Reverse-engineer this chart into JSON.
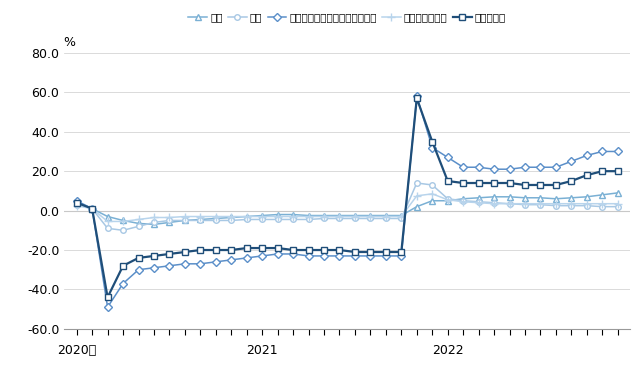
{
  "ylabel": "%",
  "ylim": [
    -60.0,
    80.0
  ],
  "yticks": [
    -60.0,
    -40.0,
    -20.0,
    0.0,
    20.0,
    40.0,
    60.0,
    80.0
  ],
  "n_months": 36,
  "series": {
    "製造": {
      "color": "#7ab0d4",
      "marker": "^",
      "markersize": 4,
      "linewidth": 1.1,
      "markerfacecolor": "white",
      "values": [
        4.0,
        1.0,
        -3.0,
        -5.0,
        -6.5,
        -7.0,
        -6.0,
        -5.0,
        -4.5,
        -4.0,
        -3.5,
        -3.0,
        -2.5,
        -2.0,
        -2.0,
        -2.5,
        -2.5,
        -2.5,
        -2.5,
        -2.5,
        -2.5,
        -2.5,
        2.0,
        5.0,
        5.0,
        6.0,
        6.5,
        7.0,
        7.0,
        6.5,
        6.5,
        6.0,
        6.5,
        7.0,
        8.0,
        9.0
      ]
    },
    "小売": {
      "color": "#a8c8e4",
      "marker": "o",
      "markersize": 4,
      "linewidth": 1.1,
      "markerfacecolor": "white",
      "values": [
        3.0,
        1.0,
        -9.0,
        -10.0,
        -8.0,
        -6.0,
        -5.0,
        -5.0,
        -5.0,
        -5.0,
        -5.0,
        -4.5,
        -4.5,
        -4.5,
        -4.5,
        -4.5,
        -4.0,
        -4.0,
        -4.0,
        -4.0,
        -4.0,
        -4.0,
        14.0,
        13.0,
        6.0,
        5.0,
        4.5,
        4.0,
        3.5,
        3.0,
        3.0,
        2.5,
        2.5,
        2.5,
        2.0,
        2.0
      ]
    },
    "芸術、娱楽、レクリエーション": {
      "color": "#5b8fc9",
      "marker": "D",
      "markersize": 4,
      "linewidth": 1.1,
      "markerfacecolor": "white",
      "values": [
        5.0,
        1.0,
        -49.0,
        -37.0,
        -30.0,
        -29.0,
        -28.0,
        -27.0,
        -27.0,
        -26.0,
        -25.0,
        -24.0,
        -23.0,
        -22.0,
        -22.0,
        -23.0,
        -23.0,
        -23.0,
        -23.0,
        -23.0,
        -23.0,
        -23.0,
        58.0,
        32.0,
        27.0,
        22.0,
        22.0,
        21.0,
        21.0,
        22.0,
        22.0,
        22.0,
        25.0,
        28.0,
        30.0,
        30.0
      ]
    },
    "保健衛生、福祉": {
      "color": "#b8d4ec",
      "marker": "+",
      "markersize": 6,
      "linewidth": 1.1,
      "markerfacecolor": "#b8d4ec",
      "values": [
        2.5,
        1.0,
        -5.5,
        -5.5,
        -4.5,
        -3.5,
        -3.5,
        -3.0,
        -3.0,
        -3.0,
        -3.0,
        -3.0,
        -3.0,
        -3.0,
        -3.0,
        -3.0,
        -3.0,
        -3.0,
        -3.0,
        -3.0,
        -3.0,
        -3.0,
        7.5,
        8.5,
        5.5,
        4.5,
        4.0,
        3.5,
        3.5,
        3.5,
        3.5,
        3.5,
        3.5,
        3.5,
        3.5,
        3.5
      ]
    },
    "宿泊、飲食": {
      "color": "#1f4e79",
      "marker": "s",
      "markersize": 4,
      "linewidth": 1.6,
      "markerfacecolor": "white",
      "values": [
        4.0,
        1.0,
        -44.0,
        -28.0,
        -24.0,
        -23.0,
        -22.0,
        -21.0,
        -20.0,
        -20.0,
        -20.0,
        -19.0,
        -19.0,
        -19.0,
        -20.0,
        -20.0,
        -20.0,
        -20.0,
        -21.0,
        -21.0,
        -21.0,
        -21.0,
        57.0,
        35.0,
        15.0,
        14.0,
        14.0,
        14.0,
        14.0,
        13.0,
        13.0,
        13.0,
        15.0,
        18.0,
        20.0,
        20.0
      ]
    }
  },
  "xtick_positions": [
    0,
    12,
    24
  ],
  "xtick_labels": [
    "2020年",
    "2021",
    "2022"
  ],
  "background_color": "#ffffff",
  "grid_color": "#cccccc",
  "zero_line_color": "#c8c8c8"
}
